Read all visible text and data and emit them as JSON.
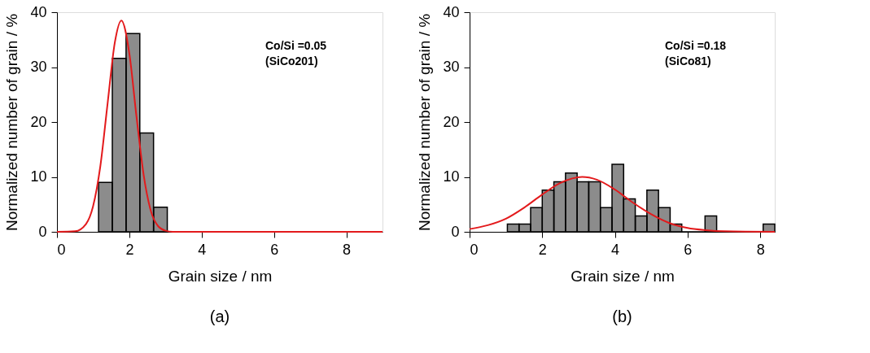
{
  "chart_data": [
    {
      "type": "histogram",
      "xlabel": "Grain size / nm",
      "ylabel": "Normalized number of grain / %",
      "xlim": [
        0,
        9
      ],
      "ylim": [
        0,
        40
      ],
      "xticks": [
        0,
        2,
        4,
        6,
        8
      ],
      "yticks": [
        0,
        10,
        20,
        30,
        40
      ],
      "grid": false,
      "annotations": [
        "Co/Si =0.05",
        "(SiCo201)",
        "(a)"
      ],
      "series": [
        {
          "type": "histogram",
          "color": "#000000",
          "bins": [
            1.15,
            1.53,
            1.91,
            2.29,
            2.67,
            3.05
          ],
          "values": [
            9,
            31.6,
            36.1,
            18,
            4.5
          ]
        },
        {
          "type": "line",
          "color": "#e31a1c",
          "x": [
            0,
            0.5,
            0.8,
            1.0,
            1.2,
            1.4,
            1.6,
            1.78,
            2.0,
            2.2,
            2.4,
            2.6,
            2.8,
            3.0,
            3.2,
            4,
            9
          ],
          "values": [
            0,
            0.1,
            1.4,
            4.7,
            12,
            23.4,
            34.5,
            38.5,
            32.5,
            20.9,
            10.2,
            3.7,
            1.0,
            0.2,
            0,
            0,
            0
          ]
        }
      ]
    },
    {
      "type": "histogram",
      "xlabel": "Grain size / nm",
      "ylabel": "Normalized number of grain / %",
      "xlim": [
        0,
        8.4
      ],
      "ylim": [
        0,
        40
      ],
      "xticks": [
        0,
        2,
        4,
        6,
        8
      ],
      "yticks": [
        0,
        10,
        20,
        30,
        40
      ],
      "grid": false,
      "annotations": [
        "Co/Si =0.18",
        "(SiCo81)",
        "(b)"
      ],
      "series": [
        {
          "type": "histogram",
          "color": "#000000",
          "bins": [
            1.04,
            1.36,
            1.68,
            2.0,
            2.32,
            2.64,
            2.96,
            3.28,
            3.6,
            3.92,
            4.24,
            4.56,
            4.88,
            5.2,
            5.52,
            5.84,
            6.16,
            6.48,
            6.8,
            7.12,
            7.44,
            7.76,
            8.08,
            8.4
          ],
          "values": [
            1.4,
            1.4,
            4.4,
            7.6,
            9.1,
            10.7,
            9.1,
            9.1,
            4.4,
            12.3,
            6.0,
            2.9,
            7.6,
            4.4,
            1.4,
            0,
            0,
            2.9,
            0,
            0,
            0,
            0,
            1.4
          ]
        },
        {
          "type": "line",
          "color": "#e31a1c",
          "x": [
            0,
            0.5,
            1.0,
            1.5,
            2.0,
            2.5,
            3.1,
            3.5,
            4.0,
            4.5,
            5.0,
            5.5,
            6.0,
            6.5,
            7.0,
            8.4
          ],
          "values": [
            0.5,
            1.2,
            2.4,
            4.4,
            6.8,
            8.9,
            10,
            9.5,
            7.7,
            5.3,
            3.2,
            1.6,
            0.7,
            0.3,
            0.1,
            0
          ]
        }
      ]
    }
  ]
}
